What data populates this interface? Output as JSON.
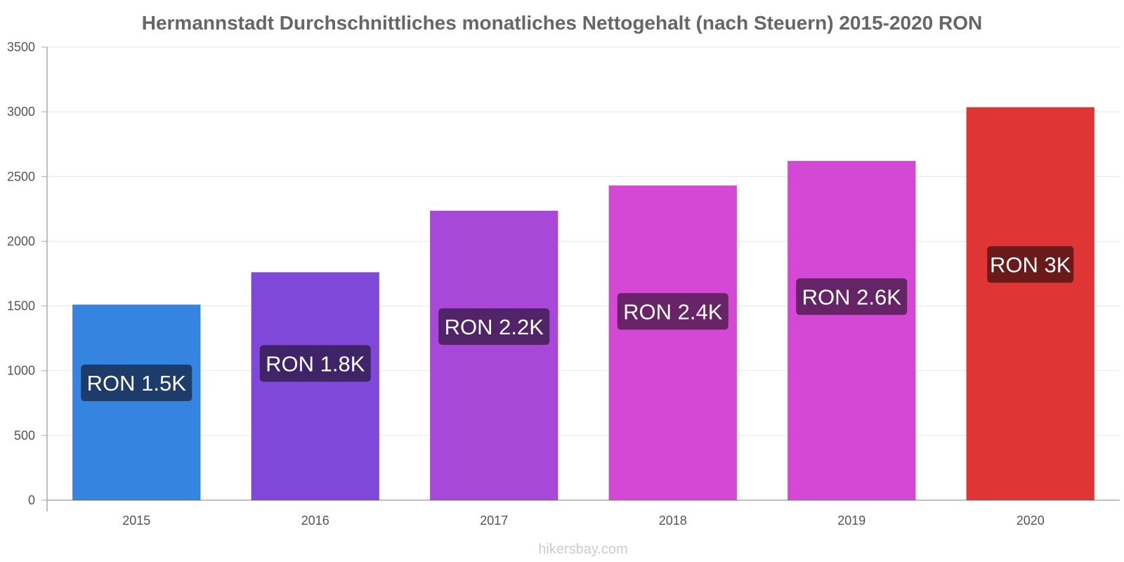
{
  "chart_data": {
    "type": "bar",
    "title": "Hermannstadt Durchschnittliches monatliches Nettogehalt (nach Steuern) 2015-2020 RON",
    "categories": [
      "2015",
      "2016",
      "2017",
      "2018",
      "2019",
      "2020"
    ],
    "values": [
      1510,
      1760,
      2235,
      2430,
      2620,
      3035
    ],
    "data_labels": [
      "RON 1.5K",
      "RON 1.8K",
      "RON 2.2K",
      "RON 2.4K",
      "RON 2.6K",
      "RON 3K"
    ],
    "bar_colors": [
      "#3584e0",
      "#8048d8",
      "#a748d8",
      "#d548d5",
      "#d448d6",
      "#e03535"
    ],
    "label_colors": [
      "#1e3c6a",
      "#3f2468",
      "#512468",
      "#682466",
      "#652466",
      "#6b1a1a"
    ],
    "ylim": [
      0,
      3500
    ],
    "yticks": [
      0,
      500,
      1000,
      1500,
      2000,
      2500,
      3000,
      3500
    ],
    "xlabel": "",
    "ylabel": "",
    "grid": true,
    "legend": "none"
  },
  "footer": {
    "source": "hikersbay.com"
  }
}
